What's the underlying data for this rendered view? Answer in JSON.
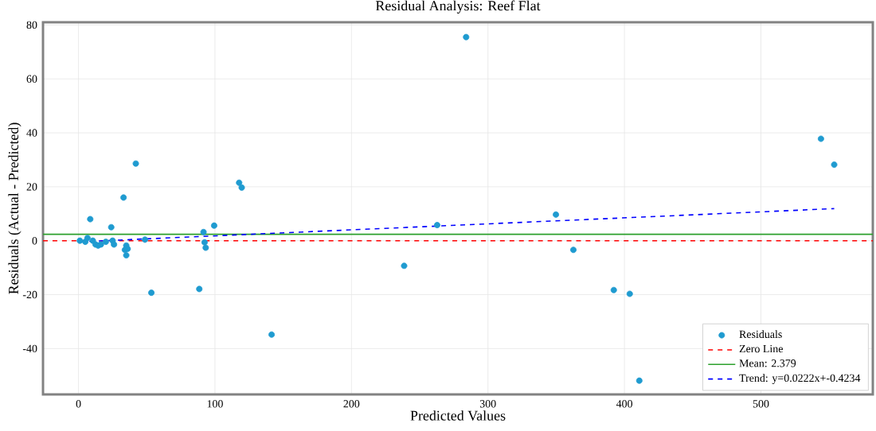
{
  "chart_data": {
    "type": "scatter",
    "title": "Residual Analysis: Reef Flat",
    "xlabel": "Predicted Values",
    "ylabel": "Residuals (Actual - Predicted)",
    "xlim": [
      -26,
      582
    ],
    "ylim": [
      -57,
      81
    ],
    "xticks": [
      0,
      100,
      200,
      300,
      400,
      500
    ],
    "yticks": [
      -40,
      -20,
      0,
      20,
      40,
      60,
      80
    ],
    "grid": true,
    "legend": "bottom right",
    "series": [
      {
        "name": "Residuals",
        "marker": "circle",
        "color": "#1f9bd0",
        "x": [
          1,
          5,
          6.6,
          8.6,
          10.5,
          12.5,
          14.4,
          16.4,
          20,
          24,
          25,
          26,
          33,
          34,
          35,
          35,
          36,
          42,
          48.7,
          53.4,
          88.5,
          91.6,
          92.4,
          93.2,
          99.4,
          117.7,
          119.6,
          141.5,
          238.6,
          262.8,
          284,
          349.8,
          362.6,
          392.2,
          403.9,
          410.9,
          544,
          553.7
        ],
        "values": [
          0,
          -0.4,
          1,
          8,
          0,
          -1.4,
          -1.8,
          -1.4,
          -0.4,
          5,
          0,
          -1.4,
          16,
          -3.4,
          -5.4,
          -1.8,
          -3,
          28.6,
          0.4,
          -19.3,
          -17.9,
          3.2,
          -0.6,
          -2.6,
          5.6,
          21.5,
          19.7,
          -34.8,
          -9.3,
          5.8,
          75.5,
          9.7,
          -3.4,
          -18.3,
          -19.7,
          -51.9,
          37.8,
          28.2
        ]
      },
      {
        "name": "Trend: y=0.0222x+-0.4234",
        "type": "line",
        "color": "#0000ff",
        "line_style": "dashed",
        "marker": "none",
        "x": [
          1,
          553.7
        ],
        "values": [
          -0.4,
          11.9
        ]
      }
    ],
    "ref_lines": [
      {
        "axis": "y",
        "value": 0,
        "label": "Zero Line",
        "color": "#ff0000",
        "line_style": "dashed"
      },
      {
        "axis": "y",
        "value": 2.379,
        "label": "Mean: 2.379",
        "color": "#2ca02c",
        "line_style": "solid"
      }
    ]
  }
}
